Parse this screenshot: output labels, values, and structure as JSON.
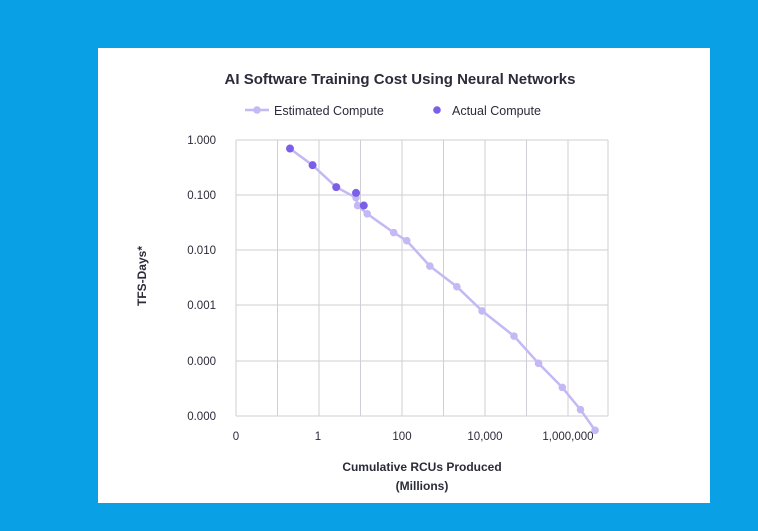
{
  "colors": {
    "background": "#0aa0e6",
    "estimated": "#c4b8f5",
    "actual": "#7b5fe8",
    "grid": "#cfcfd6"
  },
  "chart_data": {
    "type": "scatter",
    "title": "AI Software Training Cost Using Neural Networks",
    "xlabel_lines": [
      "Cumulative RCUs Produced",
      "(Millions)"
    ],
    "ylabel": "TFS-Days*",
    "x_scale": "log",
    "y_scale": "log",
    "x_ticks": [
      "0",
      "1",
      "100",
      "10,000",
      "1,000,000"
    ],
    "y_ticks": [
      "1.000",
      "0.100",
      "0.010",
      "0.001",
      "0.000",
      "0.000"
    ],
    "grid": true,
    "legend_position": "top",
    "series": [
      {
        "name": "Estimated Compute",
        "style": "line-with-markers",
        "x": [
          0.2,
          0.7,
          2.6,
          7.8,
          8.5,
          14.5,
          63,
          130,
          470,
          2100,
          8500,
          50000,
          195000,
          730000,
          2000000,
          4500000
        ],
        "y": [
          0.7,
          0.35,
          0.14,
          0.09,
          0.065,
          0.046,
          0.021,
          0.015,
          0.0052,
          0.0022,
          0.0008,
          0.00028,
          9e-05,
          3.3e-05,
          1.3e-05,
          5.5e-06
        ]
      },
      {
        "name": "Actual Compute",
        "style": "markers",
        "x": [
          0.2,
          0.7,
          2.6,
          7.8,
          12
        ],
        "y": [
          0.7,
          0.35,
          0.14,
          0.11,
          0.065
        ]
      }
    ]
  }
}
